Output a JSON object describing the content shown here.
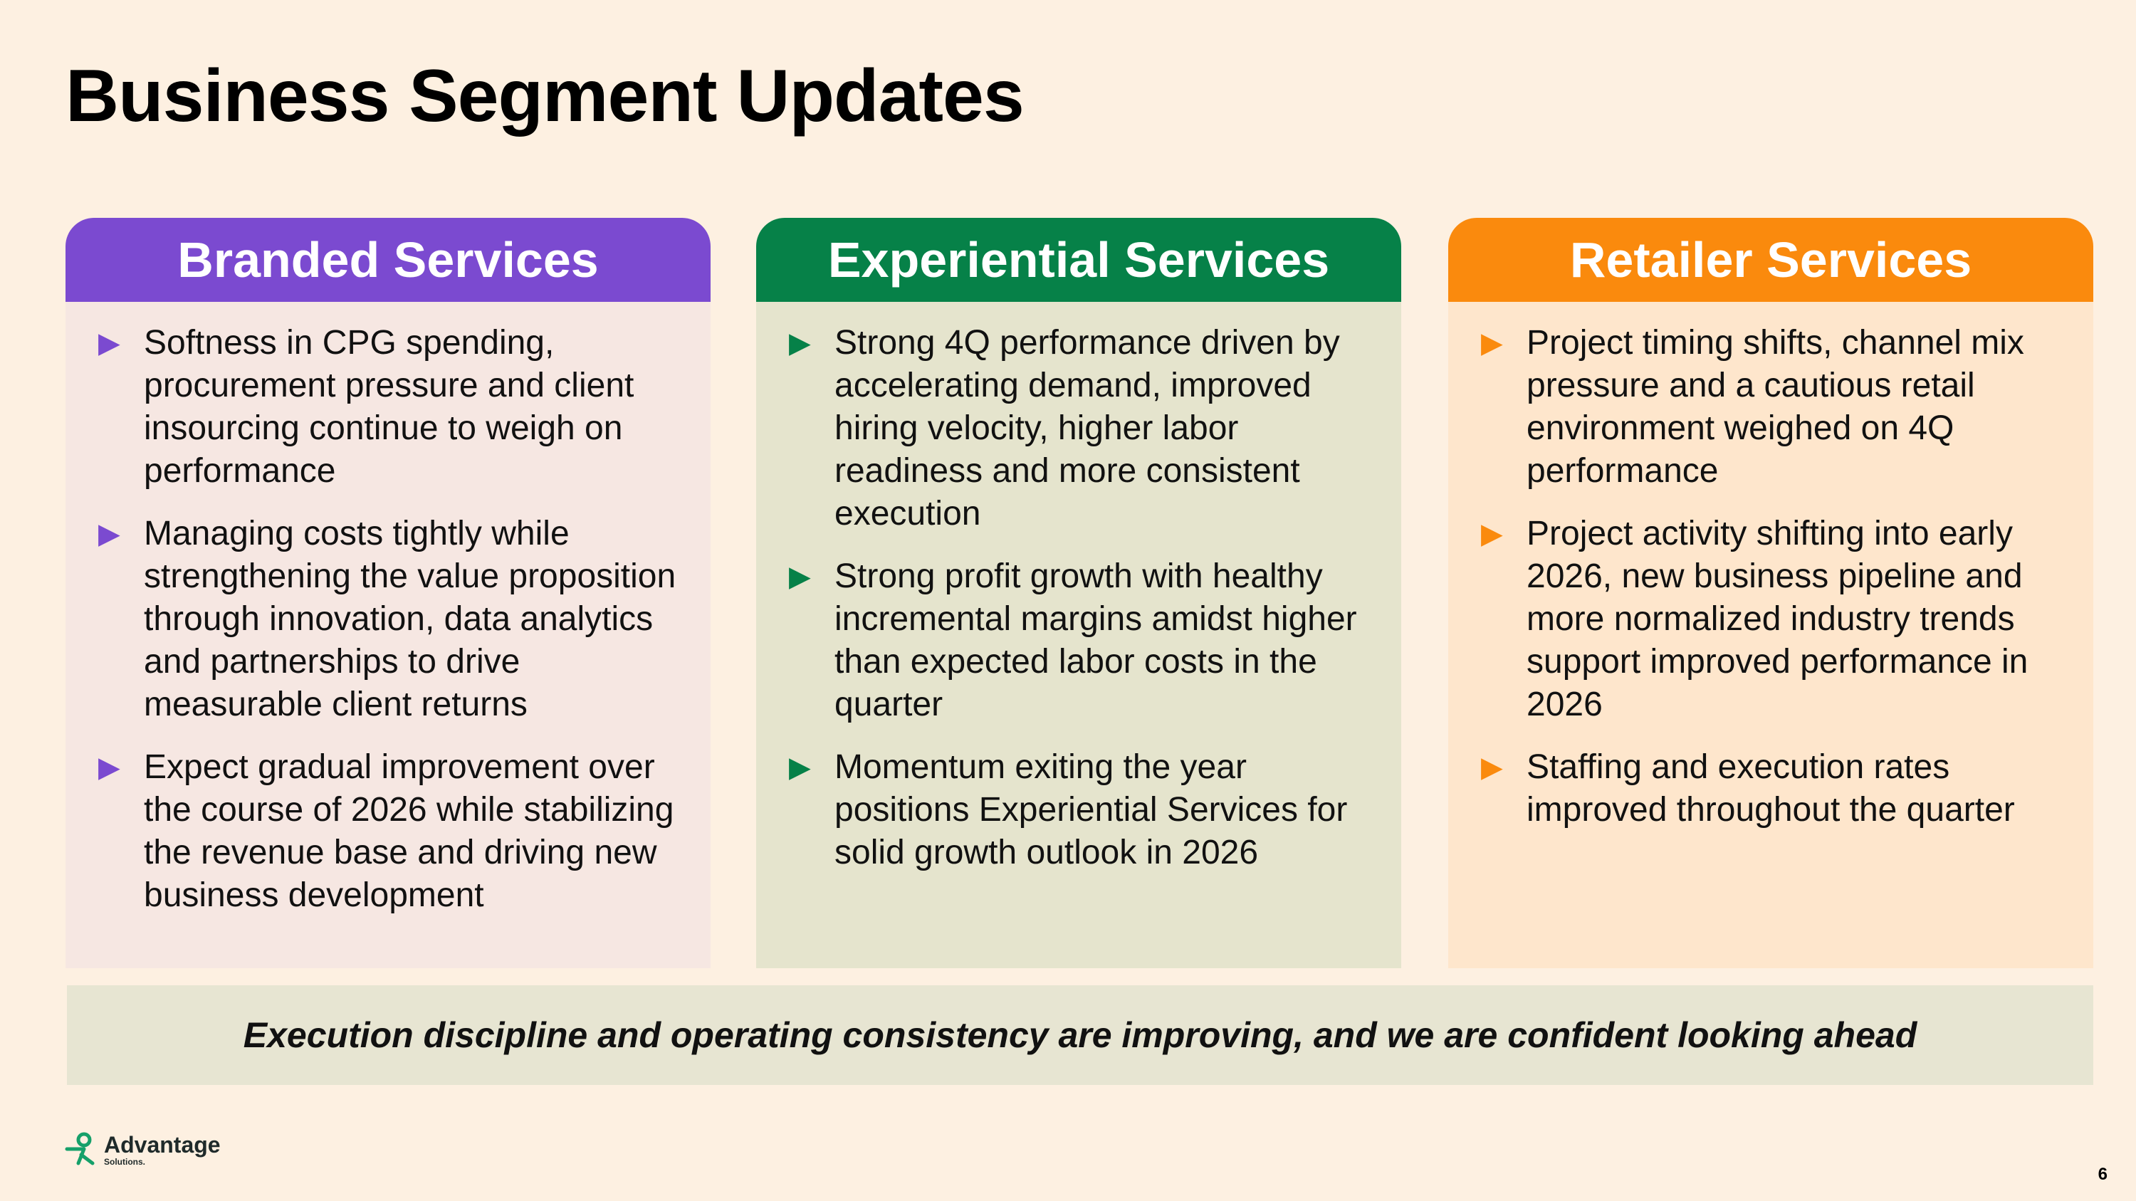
{
  "page": {
    "title": "Business Segment Updates",
    "number": "6"
  },
  "segments": [
    {
      "title": "Branded Services",
      "color": "#7b4ad0",
      "bullets": [
        "Softness in CPG spending, procurement pressure and client insourcing continue to weigh on performance",
        "Managing costs tightly while strengthening the value proposition through innovation, data analytics and partnerships to drive measurable client returns",
        "Expect gradual improvement over the course of 2026 while stabilizing the revenue base and driving new business development"
      ]
    },
    {
      "title": "Experiential Services",
      "color": "#068148",
      "bullets": [
        "Strong 4Q performance driven by accelerating demand, improved hiring velocity, higher labor readiness and more consistent execution",
        "Strong profit growth with healthy incremental margins amidst higher than expected labor costs in the quarter",
        "Momentum exiting the year positions Experiential Services for solid growth outlook in 2026"
      ]
    },
    {
      "title": "Retailer Services",
      "color": "#fa8a0d",
      "bullets": [
        "Project timing shifts, channel mix pressure and a cautious retail environment weighed on 4Q performance",
        "Project activity shifting into early 2026, new business pipeline and more normalized industry trends support improved performance in 2026",
        "Staffing and execution rates improved throughout the quarter"
      ]
    }
  ],
  "banner": {
    "text": "Execution discipline and operating consistency are improving, and we are confident looking ahead"
  },
  "logo": {
    "name": "Advantage",
    "sub": "Solutions.",
    "icon": "advantage-logo-icon",
    "color": "#16a06a"
  }
}
